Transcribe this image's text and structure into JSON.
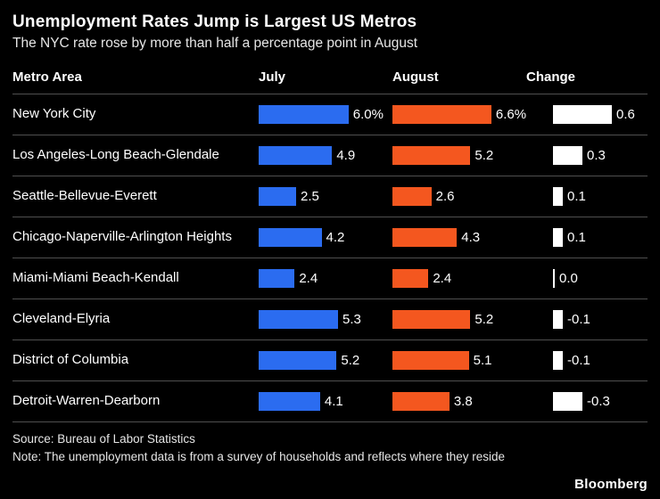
{
  "title": "Unemployment Rates Jump is Largest US Metros",
  "subtitle": "The NYC rate rose by more than half a percentage point in August",
  "columns": {
    "metro": "Metro Area",
    "july": "July",
    "august": "August",
    "change": "Change"
  },
  "colors": {
    "july": "#2b6cf0",
    "august": "#f4571f",
    "change": "#ffffff"
  },
  "rows": [
    {
      "name": "New York City",
      "july_label": "6.0%",
      "august_label": "6.6%",
      "change_label": "0.6",
      "july_v": 6.0,
      "august_v": 6.6,
      "change_v": 0.6
    },
    {
      "name": "Los Angeles-Long Beach-Glendale",
      "july_label": "4.9",
      "august_label": "5.2",
      "change_label": "0.3",
      "july_v": 4.9,
      "august_v": 5.2,
      "change_v": 0.3
    },
    {
      "name": "Seattle-Bellevue-Everett",
      "july_label": "2.5",
      "august_label": "2.6",
      "change_label": "0.1",
      "july_v": 2.5,
      "august_v": 2.6,
      "change_v": 0.1
    },
    {
      "name": "Chicago-Naperville-Arlington Heights",
      "july_label": "4.2",
      "august_label": "4.3",
      "change_label": "0.1",
      "july_v": 4.2,
      "august_v": 4.3,
      "change_v": 0.1
    },
    {
      "name": "Miami-Miami Beach-Kendall",
      "july_label": "2.4",
      "august_label": "2.4",
      "change_label": "0.0",
      "july_v": 2.4,
      "august_v": 2.4,
      "change_v": 0.0
    },
    {
      "name": "Cleveland-Elyria",
      "july_label": "5.3",
      "august_label": "5.2",
      "change_label": "-0.1",
      "july_v": 5.3,
      "august_v": 5.2,
      "change_v": -0.1
    },
    {
      "name": "District of Columbia",
      "july_label": "5.2",
      "august_label": "5.1",
      "change_label": "-0.1",
      "july_v": 5.2,
      "august_v": 5.1,
      "change_v": -0.1
    },
    {
      "name": "Detroit-Warren-Dearborn",
      "july_label": "4.1",
      "august_label": "3.8",
      "change_label": "-0.3",
      "july_v": 4.1,
      "august_v": 3.8,
      "change_v": -0.3
    }
  ],
  "footer": {
    "source": "Source: Bureau of Labor Statistics",
    "note": "Note: The unemployment data is from a survey of households and reflects where they reside"
  },
  "brand": "Bloomberg",
  "chart_data": {
    "type": "bar",
    "title": "Unemployment Rates Jump is Largest US Metros",
    "subtitle": "The NYC rate rose by more than half a percentage point in August",
    "categories": [
      "New York City",
      "Los Angeles-Long Beach-Glendale",
      "Seattle-Bellevue-Everett",
      "Chicago-Naperville-Arlington Heights",
      "Miami-Miami Beach-Kendall",
      "Cleveland-Elyria",
      "District of Columbia",
      "Detroit-Warren-Dearborn"
    ],
    "series": [
      {
        "name": "July",
        "values": [
          6.0,
          4.9,
          2.5,
          4.2,
          2.4,
          5.3,
          5.2,
          4.1
        ]
      },
      {
        "name": "August",
        "values": [
          6.6,
          5.2,
          2.6,
          4.3,
          2.4,
          5.2,
          5.1,
          3.8
        ]
      },
      {
        "name": "Change",
        "values": [
          0.6,
          0.3,
          0.1,
          0.1,
          0.0,
          -0.1,
          -0.1,
          -0.3
        ]
      }
    ],
    "unit": "percentage points",
    "orientation": "horizontal",
    "legend_position": "none",
    "grid": false,
    "source": "Bureau of Labor Statistics",
    "note": "The unemployment data is from a survey of households and reflects where they reside"
  }
}
